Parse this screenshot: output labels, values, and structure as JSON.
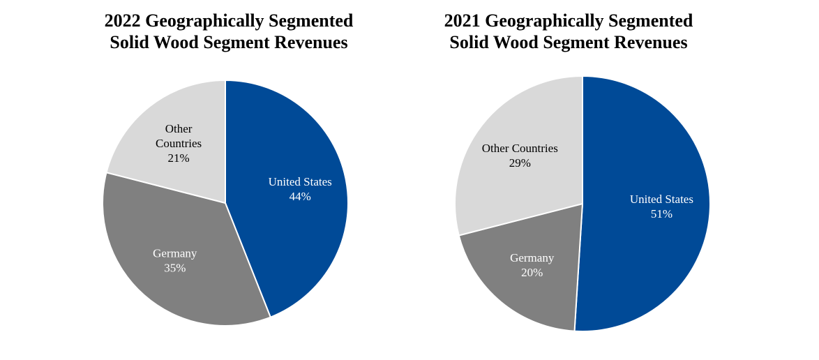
{
  "colors": {
    "united_states": "#004a97",
    "germany": "#808080",
    "other_countries": "#d9d9d9",
    "title_text": "#000000",
    "label_on_dark": "#ffffff",
    "label_on_light": "#000000"
  },
  "chart_data": [
    {
      "type": "pie",
      "title": [
        "2022 Geographically Segmented",
        "Solid Wood Segment Revenues"
      ],
      "slices": [
        {
          "key": "united_states",
          "label": [
            "United States"
          ],
          "value": 44,
          "value_label": "44%"
        },
        {
          "key": "germany",
          "label": [
            "Germany"
          ],
          "value": 35,
          "value_label": "35%"
        },
        {
          "key": "other_countries",
          "label": [
            "Other",
            "Countries"
          ],
          "value": 21,
          "value_label": "21%"
        }
      ],
      "legend": "none",
      "start": "12 o'clock",
      "direction": "clockwise"
    },
    {
      "type": "pie",
      "title": [
        "2021 Geographically Segmented",
        "Solid Wood Segment Revenues"
      ],
      "slices": [
        {
          "key": "united_states",
          "label": [
            "United States"
          ],
          "value": 51,
          "value_label": "51%"
        },
        {
          "key": "germany",
          "label": [
            "Germany"
          ],
          "value": 20,
          "value_label": "20%"
        },
        {
          "key": "other_countries",
          "label": [
            "Other Countries"
          ],
          "value": 29,
          "value_label": "29%"
        }
      ],
      "legend": "none",
      "start": "12 o'clock",
      "direction": "clockwise"
    }
  ]
}
